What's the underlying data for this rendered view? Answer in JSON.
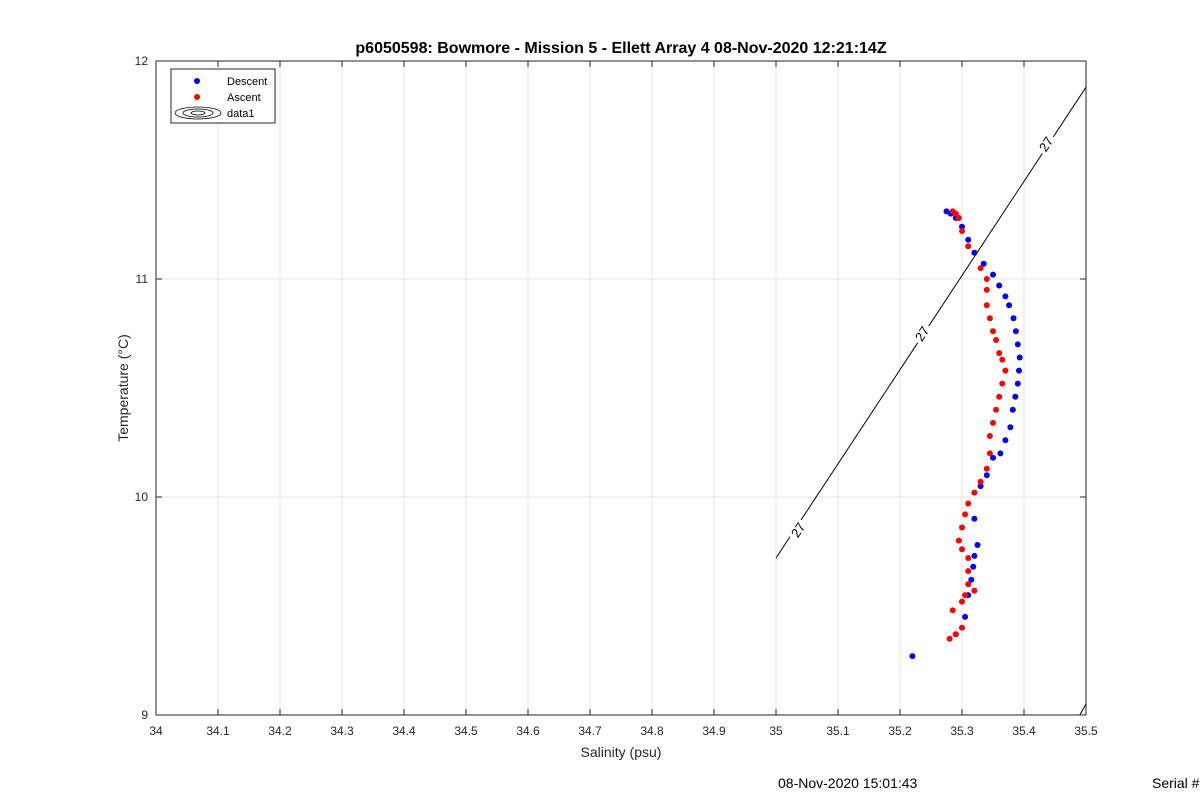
{
  "chart_data": {
    "type": "scatter",
    "title": "p6050598: Bowmore - Mission 5 - Ellett Array 4 08-Nov-2020 12:21:14Z",
    "xlabel": "Salinity (psu)",
    "ylabel": "Temperature (°C)",
    "xlim": [
      34,
      35.5
    ],
    "ylim": [
      9,
      12
    ],
    "x_ticks": [
      "34",
      "34.1",
      "34.2",
      "34.3",
      "34.4",
      "34.5",
      "34.6",
      "34.7",
      "34.8",
      "34.9",
      "35",
      "35.1",
      "35.2",
      "35.3",
      "35.4",
      "35.5"
    ],
    "y_ticks": [
      "9",
      "10",
      "11",
      "12"
    ],
    "grid": true,
    "legend": {
      "placement": "top-left",
      "entries": [
        "Descent",
        "Ascent",
        "data1"
      ]
    },
    "series": [
      {
        "name": "Descent",
        "color": "#0000ff",
        "points": [
          [
            35.22,
            9.27
          ],
          [
            35.29,
            9.37
          ],
          [
            35.305,
            9.45
          ],
          [
            35.31,
            9.55
          ],
          [
            35.315,
            9.62
          ],
          [
            35.318,
            9.68
          ],
          [
            35.32,
            9.73
          ],
          [
            35.325,
            9.78
          ],
          [
            35.32,
            9.9
          ],
          [
            35.33,
            10.05
          ],
          [
            35.34,
            10.1
          ],
          [
            35.35,
            10.18
          ],
          [
            35.362,
            10.2
          ],
          [
            35.37,
            10.26
          ],
          [
            35.378,
            10.32
          ],
          [
            35.382,
            10.4
          ],
          [
            35.386,
            10.46
          ],
          [
            35.39,
            10.52
          ],
          [
            35.392,
            10.58
          ],
          [
            35.393,
            10.64
          ],
          [
            35.39,
            10.7
          ],
          [
            35.387,
            10.76
          ],
          [
            35.383,
            10.82
          ],
          [
            35.376,
            10.88
          ],
          [
            35.37,
            10.92
          ],
          [
            35.36,
            10.97
          ],
          [
            35.35,
            11.02
          ],
          [
            35.335,
            11.07
          ],
          [
            35.32,
            11.12
          ],
          [
            35.31,
            11.18
          ],
          [
            35.3,
            11.24
          ],
          [
            35.29,
            11.28
          ],
          [
            35.282,
            11.3
          ],
          [
            35.275,
            11.31
          ]
        ]
      },
      {
        "name": "Ascent",
        "color": "#ff0000",
        "points": [
          [
            35.28,
            9.35
          ],
          [
            35.29,
            9.37
          ],
          [
            35.3,
            9.4
          ],
          [
            35.285,
            9.48
          ],
          [
            35.3,
            9.52
          ],
          [
            35.305,
            9.55
          ],
          [
            35.31,
            9.6
          ],
          [
            35.32,
            9.57
          ],
          [
            35.31,
            9.66
          ],
          [
            35.31,
            9.72
          ],
          [
            35.3,
            9.76
          ],
          [
            35.295,
            9.8
          ],
          [
            35.3,
            9.86
          ],
          [
            35.305,
            9.92
          ],
          [
            35.31,
            9.97
          ],
          [
            35.32,
            10.02
          ],
          [
            35.33,
            10.07
          ],
          [
            35.34,
            10.13
          ],
          [
            35.345,
            10.2
          ],
          [
            35.345,
            10.28
          ],
          [
            35.35,
            10.34
          ],
          [
            35.355,
            10.4
          ],
          [
            35.36,
            10.46
          ],
          [
            35.365,
            10.52
          ],
          [
            35.37,
            10.58
          ],
          [
            35.365,
            10.63
          ],
          [
            35.36,
            10.66
          ],
          [
            35.355,
            10.72
          ],
          [
            35.35,
            10.76
          ],
          [
            35.345,
            10.82
          ],
          [
            35.34,
            10.88
          ],
          [
            35.34,
            10.95
          ],
          [
            35.34,
            11.0
          ],
          [
            35.33,
            11.05
          ],
          [
            35.31,
            11.15
          ],
          [
            35.3,
            11.22
          ],
          [
            35.295,
            11.28
          ],
          [
            35.29,
            11.3
          ],
          [
            35.285,
            11.31
          ]
        ]
      }
    ],
    "contour": {
      "name": "data1",
      "level_label": "27",
      "color": "#000000",
      "lines": [
        [
          [
            35.0,
            9.72
          ],
          [
            35.5,
            11.88
          ]
        ],
        [
          [
            35.49,
            9.0
          ],
          [
            35.5,
            9.05
          ]
        ]
      ],
      "label_positions": [
        [
          35.035,
          9.85
        ],
        [
          35.235,
          10.75
        ],
        [
          35.435,
          11.62
        ]
      ]
    },
    "footer_date": "08-Nov-2020 15:01:43",
    "footer_serial": "Serial #"
  }
}
